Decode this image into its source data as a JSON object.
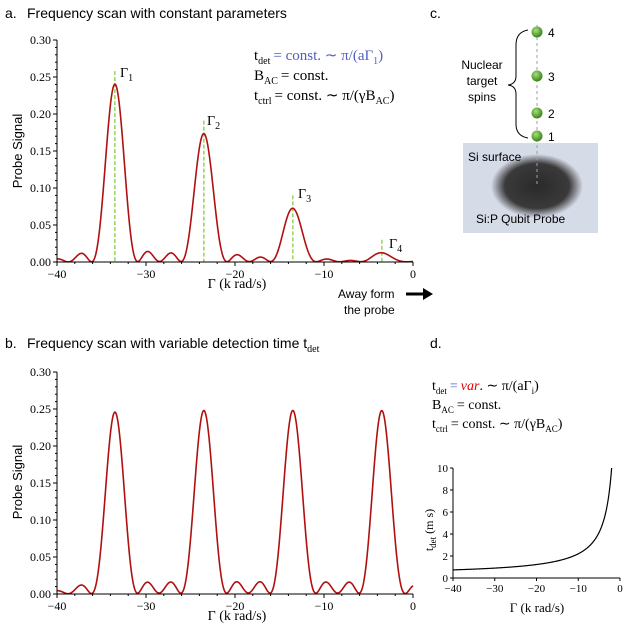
{
  "panel_a": {
    "letter": "a.",
    "title": "Frequency scan with constant parameters",
    "eq1_lhs": "t",
    "eq1_sub": "det",
    "eq1_rhs": "= const. ∼ π/(aΓ",
    "eq1_rhs_sub": "1",
    "eq1_end": ")",
    "eq2_lhs": "B",
    "eq2_sub": "AC",
    "eq2_rhs": "= const.",
    "eq3_lhs": "t",
    "eq3_sub": "ctrl",
    "eq3_rhs": "= const. ∼ π/(γB",
    "eq3_rhs_sub": "AC",
    "eq3_end": ")",
    "peak_labels": [
      {
        "base": "Γ",
        "sub": "1"
      },
      {
        "base": "Γ",
        "sub": "2"
      },
      {
        "base": "Γ",
        "sub": "3"
      },
      {
        "base": "Γ",
        "sub": "4"
      }
    ],
    "arrow_text_1": "Away form",
    "arrow_text_2": "the probe"
  },
  "panel_b": {
    "letter": "b.",
    "title": "Frequency scan with variable detection time t",
    "title_sub": "det"
  },
  "panel_c": {
    "letter": "c.",
    "spin_labels": [
      "4",
      "3",
      "2",
      "1"
    ],
    "nuclear_label": [
      "Nuclear",
      "target",
      "spins"
    ],
    "surface_label": "Si surface",
    "probe_label": "Si:P  Qubit Probe"
  },
  "panel_d": {
    "letter": "d.",
    "eq1_lhs": "t",
    "eq1_sub": "det",
    "eq1_eq": "=",
    "eq1_var": "var",
    "eq1_rhs": ". ∼ π/(aΓ",
    "eq1_rhs_sub": "i",
    "eq1_end": ")",
    "eq2_lhs": "B",
    "eq2_sub": "AC",
    "eq2_rhs": "= const.",
    "eq3_lhs": "t",
    "eq3_sub": "ctrl",
    "eq3_rhs": "= const. ∼ π/(γB",
    "eq3_rhs_sub": "AC",
    "eq3_end": ")"
  },
  "colors": {
    "curve": "#b01010",
    "guide": "#8fd14f",
    "tdet_eq": "#5060c0",
    "var_red": "#e00000",
    "spin": "#5aa832",
    "surface": "#d6dbe8"
  },
  "chart_data": [
    {
      "type": "line",
      "title": "",
      "xlabel": "Γ (k rad/s)",
      "ylabel": "Probe Signal",
      "xlim": [
        -40,
        0
      ],
      "ylim": [
        0,
        0.3
      ],
      "xticks": [
        "−40",
        "−30",
        "−20",
        "−10",
        "0"
      ],
      "yticks": [
        "0.00",
        "0.05",
        "0.10",
        "0.15",
        "0.20",
        "0.25",
        "0.30"
      ],
      "grid": false,
      "peaks": [
        {
          "x": -33.5,
          "y": 0.24
        },
        {
          "x": -23.5,
          "y": 0.173
        },
        {
          "x": -13.5,
          "y": 0.072
        },
        {
          "x": -3.5,
          "y": 0.012
        }
      ],
      "guide_lines_x": [
        -33.5,
        -23.5,
        -13.5,
        -3.5
      ]
    },
    {
      "type": "line",
      "title": "",
      "xlabel": "Γ (k rad/s)",
      "ylabel": "Probe Signal",
      "xlim": [
        -40,
        0
      ],
      "ylim": [
        0,
        0.3
      ],
      "xticks": [
        "−40",
        "−30",
        "−20",
        "−10",
        "0"
      ],
      "yticks": [
        "0.00",
        "0.05",
        "0.10",
        "0.15",
        "0.20",
        "0.25",
        "0.30"
      ],
      "grid": false,
      "peaks": [
        {
          "x": -33.5,
          "y": 0.245
        },
        {
          "x": -23.5,
          "y": 0.247
        },
        {
          "x": -13.5,
          "y": 0.247
        },
        {
          "x": -3.5,
          "y": 0.247
        }
      ]
    },
    {
      "type": "line",
      "title": "",
      "xlabel": "Γ (k rad/s)",
      "ylabel": "t_det (m s)",
      "xlim": [
        -40,
        0
      ],
      "ylim": [
        0,
        10
      ],
      "xticks": [
        "−40",
        "−30",
        "−20",
        "−10",
        "0"
      ],
      "yticks": [
        "0",
        "2",
        "4",
        "6",
        "8",
        "10"
      ],
      "grid": false,
      "series": [
        {
          "x": [
            -40,
            -30,
            -20,
            -10,
            -7,
            -5,
            -4,
            -3,
            -2.5,
            -2
          ],
          "y": [
            0.5,
            0.65,
            1.0,
            2.0,
            2.8,
            3.8,
            4.8,
            6.3,
            7.5,
            9.6
          ]
        }
      ]
    }
  ]
}
